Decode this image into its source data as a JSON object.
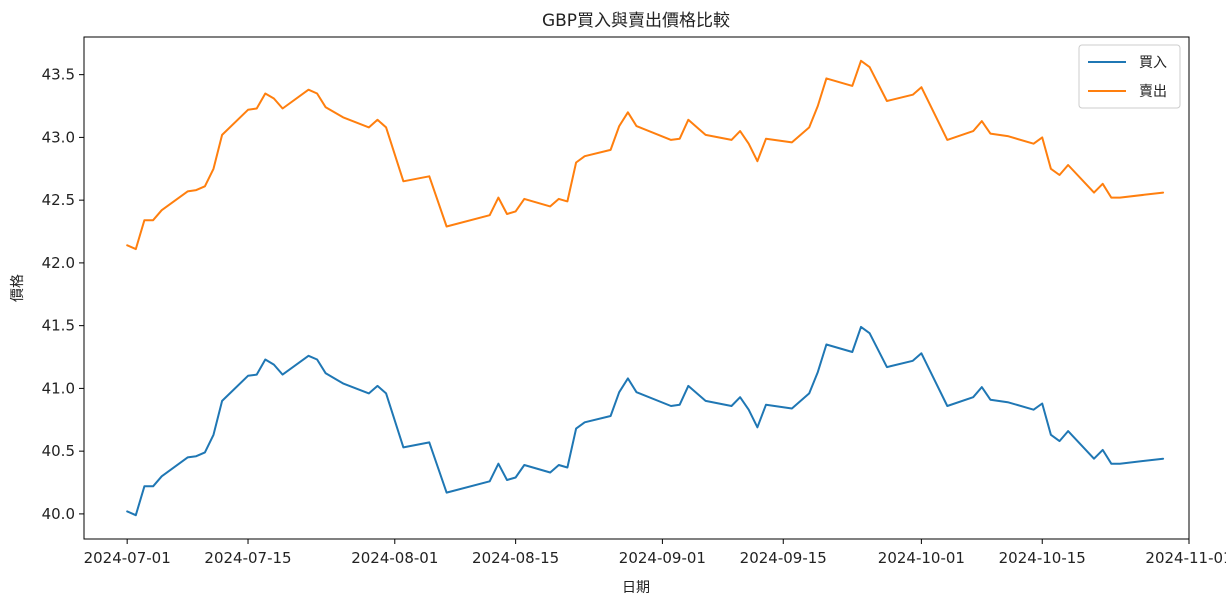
{
  "chart_data": {
    "type": "line",
    "title": "GBP買入與賣出價格比較",
    "xlabel": "日期",
    "ylabel": "價格",
    "xlim": [
      "2024-06-26",
      "2024-11-01"
    ],
    "ylim": [
      39.8,
      43.8
    ],
    "x_ticks": [
      "2024-07-01",
      "2024-07-15",
      "2024-08-01",
      "2024-08-15",
      "2024-09-01",
      "2024-09-15",
      "2024-10-01",
      "2024-10-15",
      "2024-11-01"
    ],
    "y_ticks": [
      40.0,
      40.5,
      41.0,
      41.5,
      42.0,
      42.5,
      43.0,
      43.5
    ],
    "grid": false,
    "legend_position": "top-right",
    "x": [
      "2024-07-01",
      "2024-07-02",
      "2024-07-03",
      "2024-07-04",
      "2024-07-05",
      "2024-07-08",
      "2024-07-09",
      "2024-07-10",
      "2024-07-11",
      "2024-07-12",
      "2024-07-15",
      "2024-07-16",
      "2024-07-17",
      "2024-07-18",
      "2024-07-19",
      "2024-07-22",
      "2024-07-23",
      "2024-07-24",
      "2024-07-26",
      "2024-07-29",
      "2024-07-30",
      "2024-07-31",
      "2024-08-02",
      "2024-08-05",
      "2024-08-07",
      "2024-08-12",
      "2024-08-13",
      "2024-08-14",
      "2024-08-15",
      "2024-08-16",
      "2024-08-19",
      "2024-08-20",
      "2024-08-21",
      "2024-08-22",
      "2024-08-23",
      "2024-08-26",
      "2024-08-27",
      "2024-08-28",
      "2024-08-29",
      "2024-09-02",
      "2024-09-03",
      "2024-09-04",
      "2024-09-06",
      "2024-09-09",
      "2024-09-10",
      "2024-09-11",
      "2024-09-12",
      "2024-09-13",
      "2024-09-16",
      "2024-09-18",
      "2024-09-19",
      "2024-09-20",
      "2024-09-23",
      "2024-09-24",
      "2024-09-25",
      "2024-09-27",
      "2024-09-30",
      "2024-10-01",
      "2024-10-04",
      "2024-10-07",
      "2024-10-08",
      "2024-10-09",
      "2024-10-11",
      "2024-10-14",
      "2024-10-15",
      "2024-10-16",
      "2024-10-17",
      "2024-10-18",
      "2024-10-21",
      "2024-10-22",
      "2024-10-23",
      "2024-10-24",
      "2024-10-29"
    ],
    "series": [
      {
        "name": "買入",
        "color": "#1f77b4",
        "values": [
          40.02,
          39.99,
          40.22,
          40.22,
          40.3,
          40.45,
          40.46,
          40.49,
          40.63,
          40.9,
          41.1,
          41.11,
          41.23,
          41.19,
          41.11,
          41.26,
          41.23,
          41.12,
          41.04,
          40.96,
          41.02,
          40.96,
          40.53,
          40.57,
          40.17,
          40.26,
          40.4,
          40.27,
          40.29,
          40.39,
          40.33,
          40.39,
          40.37,
          40.68,
          40.73,
          40.78,
          40.97,
          41.08,
          40.97,
          40.86,
          40.87,
          41.02,
          40.9,
          40.86,
          40.93,
          40.83,
          40.69,
          40.87,
          40.84,
          40.96,
          41.13,
          41.35,
          41.29,
          41.49,
          41.44,
          41.17,
          41.22,
          41.28,
          40.86,
          40.93,
          41.01,
          40.91,
          40.89,
          40.83,
          40.88,
          40.63,
          40.58,
          40.66,
          40.44,
          40.51,
          40.4,
          40.4,
          40.44
        ]
      },
      {
        "name": "賣出",
        "color": "#ff7f0e",
        "values": [
          42.14,
          42.11,
          42.34,
          42.34,
          42.42,
          42.57,
          42.58,
          42.61,
          42.75,
          43.02,
          43.22,
          43.23,
          43.35,
          43.31,
          43.23,
          43.38,
          43.35,
          43.24,
          43.16,
          43.08,
          43.14,
          43.08,
          42.65,
          42.69,
          42.29,
          42.38,
          42.52,
          42.39,
          42.41,
          42.51,
          42.45,
          42.51,
          42.49,
          42.8,
          42.85,
          42.9,
          43.09,
          43.2,
          43.09,
          42.98,
          42.99,
          43.14,
          43.02,
          42.98,
          43.05,
          42.95,
          42.81,
          42.99,
          42.96,
          43.08,
          43.25,
          43.47,
          43.41,
          43.61,
          43.56,
          43.29,
          43.34,
          43.4,
          42.98,
          43.05,
          43.13,
          43.03,
          43.01,
          42.95,
          43.0,
          42.75,
          42.7,
          42.78,
          42.56,
          42.63,
          42.52,
          42.52,
          42.56
        ]
      }
    ]
  }
}
